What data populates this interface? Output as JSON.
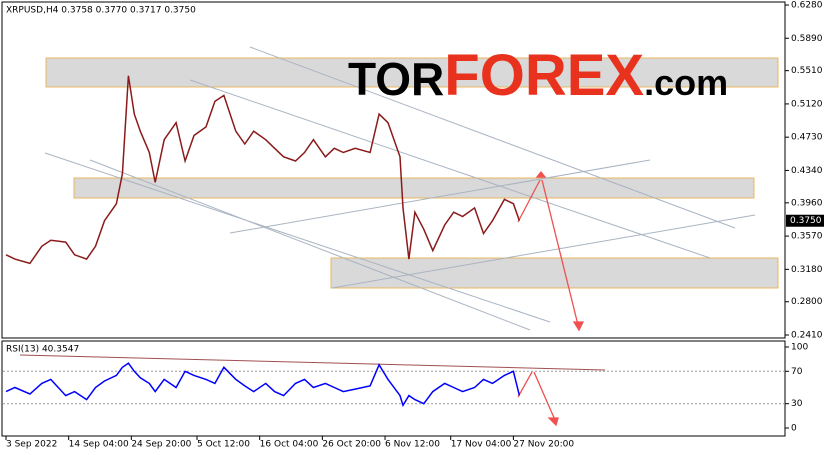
{
  "branding": {
    "parts": [
      "TOR",
      "FOREX",
      ".com"
    ]
  },
  "chart_data": [
    {
      "type": "line",
      "title": "XRPUSD,H4  0.3758 0.3770 0.3717 0.3750",
      "x": [
        0,
        3,
        8,
        12,
        15,
        20,
        23,
        27,
        30,
        33,
        37,
        39,
        41,
        43,
        45,
        48,
        50,
        53,
        57,
        60,
        63,
        67,
        70,
        73,
        77,
        80,
        83,
        87,
        90,
        93,
        97,
        100,
        103,
        107,
        110,
        113,
        117,
        122,
        125,
        128,
        132,
        133,
        135,
        137,
        140,
        143,
        147,
        150,
        153,
        157,
        160,
        163,
        167,
        170,
        172
      ],
      "series": [
        {
          "name": "XRPUSD",
          "color": "#8b1a1a",
          "values": [
            0.335,
            0.33,
            0.325,
            0.345,
            0.352,
            0.35,
            0.335,
            0.33,
            0.345,
            0.375,
            0.395,
            0.43,
            0.545,
            0.5,
            0.48,
            0.455,
            0.42,
            0.47,
            0.49,
            0.445,
            0.475,
            0.485,
            0.515,
            0.522,
            0.48,
            0.465,
            0.48,
            0.47,
            0.46,
            0.45,
            0.445,
            0.455,
            0.47,
            0.45,
            0.46,
            0.455,
            0.46,
            0.455,
            0.5,
            0.49,
            0.45,
            0.39,
            0.33,
            0.385,
            0.365,
            0.34,
            0.37,
            0.385,
            0.38,
            0.39,
            0.36,
            0.375,
            0.4,
            0.395,
            0.375
          ]
        }
      ],
      "xlim": [
        -1,
        261
      ],
      "ylim": [
        0.241,
        0.628
      ],
      "yticks": [
        {
          "value": 0.628,
          "label": "0.6280"
        },
        {
          "value": 0.589,
          "label": "0.5890"
        },
        {
          "value": 0.551,
          "label": "0.5510"
        },
        {
          "value": 0.512,
          "label": "0.5120"
        },
        {
          "value": 0.473,
          "label": "0.4730"
        },
        {
          "value": 0.434,
          "label": "0.4340"
        },
        {
          "value": 0.396,
          "label": "0.3960"
        },
        {
          "value": 0.357,
          "label": "0.3570"
        },
        {
          "value": 0.318,
          "label": "0.3180"
        },
        {
          "value": 0.28,
          "label": "0.2800"
        },
        {
          "value": 0.241,
          "label": "0.2410"
        }
      ],
      "last_price": {
        "value": 0.375,
        "label": "0.3750"
      }
    },
    {
      "type": "line",
      "title": "RSI(13) 40.3547",
      "x": [
        0,
        3,
        8,
        12,
        15,
        20,
        23,
        27,
        30,
        33,
        37,
        39,
        41,
        43,
        45,
        48,
        50,
        53,
        57,
        60,
        63,
        67,
        70,
        73,
        77,
        80,
        83,
        87,
        90,
        93,
        97,
        100,
        103,
        107,
        110,
        113,
        117,
        122,
        125,
        128,
        132,
        133,
        135,
        137,
        140,
        143,
        147,
        150,
        153,
        157,
        160,
        163,
        167,
        170,
        172
      ],
      "series": [
        {
          "name": "RSI",
          "color": "#0000ff",
          "values": [
            45,
            50,
            42,
            55,
            60,
            40,
            45,
            35,
            50,
            58,
            65,
            75,
            80,
            70,
            62,
            55,
            45,
            60,
            50,
            70,
            65,
            60,
            55,
            75,
            60,
            52,
            45,
            55,
            45,
            40,
            55,
            60,
            50,
            55,
            50,
            45,
            48,
            52,
            78,
            60,
            40,
            28,
            40,
            35,
            30,
            45,
            55,
            50,
            45,
            50,
            60,
            55,
            65,
            70,
            40
          ]
        }
      ],
      "xlim": [
        -1,
        261
      ],
      "ylim": [
        0,
        100
      ],
      "yticks": [
        100,
        70,
        30,
        0
      ],
      "xticks": [
        {
          "value": 0,
          "label": "3 Sep 2022"
        },
        {
          "value": 21,
          "label": "14 Sep 04:00"
        },
        {
          "value": 42,
          "label": "24 Sep 20:00"
        },
        {
          "value": 64,
          "label": "5 Oct 12:00"
        },
        {
          "value": 85,
          "label": "16 Oct 04:00"
        },
        {
          "value": 106,
          "label": "26 Oct 20:00"
        },
        {
          "value": 127,
          "label": "6 Nov 12:00"
        },
        {
          "value": 149,
          "label": "17 Nov 04:00"
        },
        {
          "value": 170,
          "label": "27 Nov 20:00"
        }
      ]
    }
  ]
}
